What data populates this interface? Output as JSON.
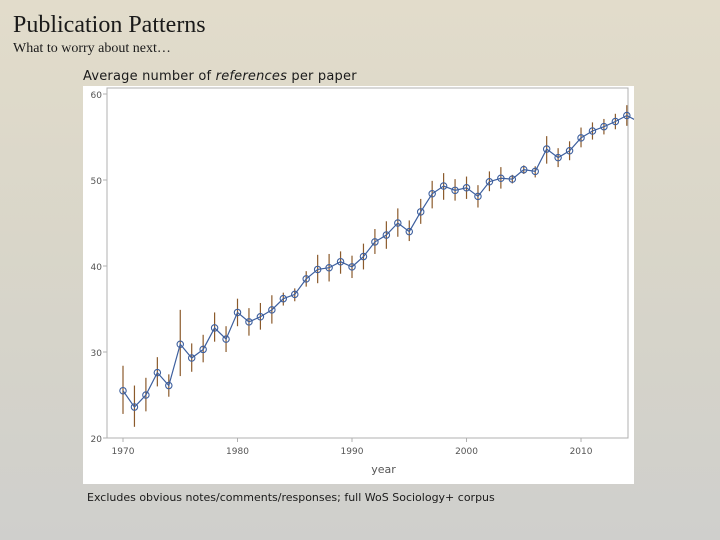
{
  "slide": {
    "title": "Publication Patterns",
    "subtitle": "What to worry about next…",
    "caption_pre": "Average number of ",
    "caption_em": "references",
    "caption_post": " per paper",
    "footnote": "Excludes obvious notes/comments/responses; full WoS Sociology+ corpus"
  },
  "colors": {
    "line": "#3d5f9e",
    "marker": "#3d5f9e",
    "errorbar": "#8b5a2b",
    "frame": "#b0b0b0",
    "axis_text": "#555555"
  },
  "chart_data": {
    "type": "line",
    "title": "Average number of references per paper",
    "xlabel": "year",
    "ylabel": "",
    "xlim": [
      1970,
      2015.5
    ],
    "ylim": [
      20,
      60
    ],
    "xticks": [
      1970,
      1980,
      1990,
      2000,
      2010
    ],
    "yticks": [
      20,
      30,
      40,
      50,
      60
    ],
    "grid": false,
    "series": [
      {
        "name": "references per paper",
        "x": [
          1970,
          1971,
          1972,
          1973,
          1974,
          1975,
          1976,
          1977,
          1978,
          1979,
          1980,
          1981,
          1982,
          1983,
          1984,
          1985,
          1986,
          1987,
          1988,
          1989,
          1990,
          1991,
          1992,
          1993,
          1994,
          1995,
          1996,
          1997,
          1998,
          1999,
          2000,
          2001,
          2002,
          2003,
          2004,
          2005,
          2006,
          2007,
          2008,
          2009,
          2010,
          2011,
          2012,
          2013,
          2014,
          2015
        ],
        "values": [
          25.5,
          23.6,
          25.0,
          27.6,
          26.1,
          30.9,
          29.3,
          30.3,
          32.8,
          31.5,
          34.6,
          33.5,
          34.1,
          34.9,
          36.2,
          36.7,
          38.5,
          39.6,
          39.8,
          40.5,
          39.9,
          41.1,
          42.8,
          43.6,
          45.0,
          44.0,
          46.3,
          48.4,
          49.3,
          48.8,
          49.1,
          48.1,
          49.8,
          50.2,
          50.1,
          51.2,
          51.0,
          53.6,
          52.6,
          53.4,
          54.9,
          55.7,
          56.2,
          56.8,
          57.5,
          56.8
        ],
        "lower": [
          22.8,
          21.3,
          23.1,
          26.0,
          24.8,
          27.2,
          27.7,
          28.8,
          31.2,
          30.0,
          33.0,
          31.9,
          32.6,
          33.3,
          35.4,
          35.9,
          37.6,
          38.0,
          38.2,
          39.1,
          38.6,
          39.6,
          41.4,
          42.0,
          43.4,
          42.9,
          44.9,
          46.7,
          47.7,
          47.6,
          47.8,
          46.8,
          48.7,
          49.0,
          49.6,
          50.7,
          50.3,
          51.9,
          51.5,
          52.3,
          53.8,
          54.7,
          55.3,
          55.9,
          56.3,
          55.8
        ],
        "upper": [
          28.4,
          26.1,
          27.0,
          29.4,
          27.4,
          34.9,
          31.0,
          32.0,
          34.6,
          33.0,
          36.2,
          35.1,
          35.7,
          36.6,
          36.9,
          37.4,
          39.4,
          41.3,
          41.4,
          41.7,
          41.2,
          42.6,
          44.3,
          45.2,
          46.7,
          45.3,
          47.8,
          49.9,
          50.8,
          50.1,
          50.4,
          49.4,
          51.0,
          51.5,
          50.6,
          51.7,
          51.6,
          55.1,
          53.7,
          54.5,
          56.1,
          56.7,
          57.1,
          57.7,
          58.7,
          57.9
        ]
      }
    ]
  }
}
